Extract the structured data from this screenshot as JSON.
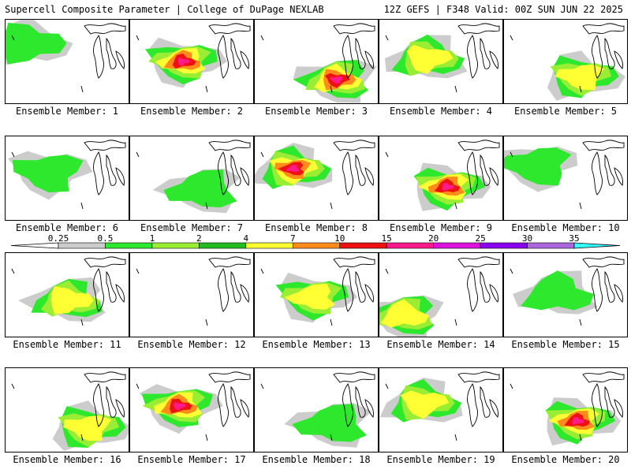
{
  "header": {
    "left_title": "Supercell Composite Parameter | College of DuPage NEXLAB",
    "right_title": "12Z GEFS | F348 Valid: 00Z SUN JUN 22 2025"
  },
  "colorbar": {
    "labels": [
      "0.25",
      "0.5",
      "1",
      "2",
      "4",
      "7",
      "10",
      "15",
      "20",
      "25",
      "30",
      "35"
    ],
    "colors": [
      "#cccccc",
      "#2ee82e",
      "#99ee33",
      "#22bb22",
      "#ffff33",
      "#ff8c1a",
      "#ee1111",
      "#ff1a8c",
      "#dd11dd",
      "#8800ee",
      "#aa66dd",
      "#33ffff"
    ]
  },
  "panels": [
    {
      "label": "Ensemble Member: 1",
      "intensity": "low"
    },
    {
      "label": "Ensemble Member: 2",
      "intensity": "high"
    },
    {
      "label": "Ensemble Member: 3",
      "intensity": "high"
    },
    {
      "label": "Ensemble Member: 4",
      "intensity": "mid"
    },
    {
      "label": "Ensemble Member: 5",
      "intensity": "mid"
    },
    {
      "label": "Ensemble Member: 6",
      "intensity": "low"
    },
    {
      "label": "Ensemble Member: 7",
      "intensity": "low"
    },
    {
      "label": "Ensemble Member: 8",
      "intensity": "high"
    },
    {
      "label": "Ensemble Member: 9",
      "intensity": "high"
    },
    {
      "label": "Ensemble Member: 10",
      "intensity": "low"
    },
    {
      "label": "Ensemble Member: 11",
      "intensity": "mid"
    },
    {
      "label": "Ensemble Member: 12",
      "intensity": "none"
    },
    {
      "label": "Ensemble Member: 13",
      "intensity": "mid"
    },
    {
      "label": "Ensemble Member: 14",
      "intensity": "mid"
    },
    {
      "label": "Ensemble Member: 15",
      "intensity": "low"
    },
    {
      "label": "Ensemble Member: 16",
      "intensity": "mid"
    },
    {
      "label": "Ensemble Member: 17",
      "intensity": "high"
    },
    {
      "label": "Ensemble Member: 18",
      "intensity": "low"
    },
    {
      "label": "Ensemble Member: 19",
      "intensity": "mid"
    },
    {
      "label": "Ensemble Member: 20",
      "intensity": "high"
    }
  ]
}
